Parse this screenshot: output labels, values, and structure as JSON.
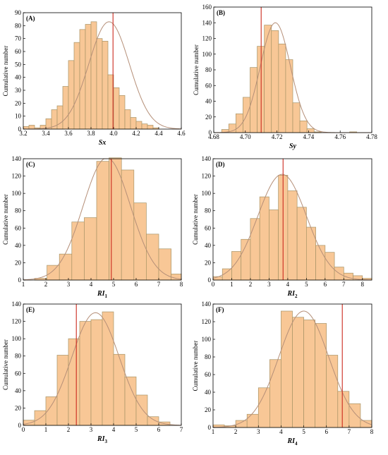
{
  "colors": {
    "bar_fill": "#f8c796",
    "bar_stroke": "#a89466",
    "curve": "#b58f78",
    "marker": "#cc2a1e",
    "frame": "#000000"
  },
  "chart_data": [
    {
      "panel": "(A)",
      "type": "bar",
      "xlabel": "Sx",
      "xlabel_sub": "",
      "ylabel": "Cumulative number",
      "xlim": [
        3.2,
        4.6
      ],
      "ylim": [
        0,
        90
      ],
      "xticks": [
        "3.2",
        "3.4",
        "3.6",
        "3.8",
        "4.0",
        "4.2",
        "4.4",
        "4.6"
      ],
      "yticks": [
        "0",
        "10",
        "20",
        "30",
        "40",
        "50",
        "60",
        "70",
        "80",
        "90"
      ],
      "bins_start": 3.2,
      "bin_width": 0.05,
      "values": [
        2,
        3,
        1,
        3,
        8,
        15,
        18,
        33,
        53,
        67,
        77,
        81,
        83,
        70,
        68,
        42,
        32,
        26,
        15,
        9,
        6,
        4,
        3,
        1
      ],
      "vline": 3.995,
      "fit": {
        "mu": 3.96,
        "sigma": 0.18,
        "peak": 83
      }
    },
    {
      "panel": "(B)",
      "type": "bar",
      "xlabel": "Sy",
      "xlabel_sub": "",
      "ylabel": "Cumulative number",
      "xlim": [
        4.68,
        4.78
      ],
      "ylim": [
        0,
        160
      ],
      "xticks": [
        "4.68",
        "4.70",
        "4.72",
        "4.74",
        "4.76",
        "4.78"
      ],
      "yticks": [
        "0",
        "20",
        "40",
        "60",
        "80",
        "100",
        "120",
        "140",
        "160"
      ],
      "bins_start": 4.685,
      "bin_width": 0.0045,
      "values": [
        4,
        11,
        24,
        45,
        83,
        110,
        137,
        130,
        113,
        93,
        38,
        15,
        5,
        1,
        0,
        0,
        0,
        0,
        1
      ],
      "vline": 4.71,
      "fit": {
        "mu": 4.719,
        "sigma": 0.0095,
        "peak": 140
      }
    },
    {
      "panel": "(C)",
      "type": "bar",
      "xlabel": "RI",
      "xlabel_sub": "1",
      "ylabel": "Cumulative number",
      "xlim": [
        1,
        8
      ],
      "ylim": [
        0,
        140
      ],
      "xticks": [
        "1",
        "2",
        "3",
        "4",
        "5",
        "6",
        "7",
        "8"
      ],
      "yticks": [
        "0",
        "20",
        "40",
        "60",
        "80",
        "100",
        "120",
        "140"
      ],
      "bins_start": 1.5,
      "bin_width": 0.55,
      "values": [
        2,
        17,
        30,
        67,
        72,
        137,
        141,
        127,
        89,
        53,
        36,
        7
      ],
      "vline": 4.9,
      "fit": {
        "mu": 4.7,
        "sigma": 1.05,
        "peak": 141
      }
    },
    {
      "panel": "(D)",
      "type": "bar",
      "xlabel": "RI",
      "xlabel_sub": "2",
      "ylabel": "Cumulative number",
      "xlim": [
        0,
        8.5
      ],
      "ylim": [
        0,
        140
      ],
      "xticks": [
        "0",
        "1",
        "2",
        "3",
        "4",
        "5",
        "6",
        "7",
        "8"
      ],
      "yticks": [
        "0",
        "20",
        "40",
        "60",
        "80",
        "100",
        "120",
        "140"
      ],
      "bins_start": 0,
      "bin_width": 0.5,
      "values": [
        4,
        13,
        33,
        47,
        71,
        96,
        81,
        121,
        103,
        84,
        61,
        40,
        32,
        15,
        8,
        5,
        2
      ],
      "vline": 3.75,
      "fit": {
        "mu": 3.7,
        "sigma": 1.3,
        "peak": 122
      }
    },
    {
      "panel": "(E)",
      "type": "bar",
      "xlabel": "RI",
      "xlabel_sub": "3",
      "ylabel": "Cumulative number",
      "xlim": [
        0,
        7
      ],
      "ylim": [
        0,
        140
      ],
      "xticks": [
        "0",
        "1",
        "2",
        "3",
        "4",
        "5",
        "6",
        "7"
      ],
      "yticks": [
        "0",
        "20",
        "40",
        "60",
        "80",
        "100",
        "120",
        "140"
      ],
      "bins_start": 0,
      "bin_width": 0.5,
      "values": [
        6,
        17,
        33,
        81,
        100,
        120,
        122,
        131,
        82,
        56,
        35,
        10,
        4
      ],
      "vline": 2.35,
      "fit": {
        "mu": 3.2,
        "sigma": 1.05,
        "peak": 130
      }
    },
    {
      "panel": "(F)",
      "type": "bar",
      "xlabel": "RI",
      "xlabel_sub": "4",
      "ylabel": "Cumulative number",
      "xlim": [
        1,
        8
      ],
      "ylim": [
        0,
        140
      ],
      "xticks": [
        "1",
        "2",
        "3",
        "4",
        "5",
        "6",
        "7",
        "8"
      ],
      "yticks": [
        "0",
        "20",
        "40",
        "60",
        "80",
        "100",
        "120",
        "140"
      ],
      "bins_start": 1,
      "bin_width": 0.5,
      "values": [
        3,
        2,
        8,
        15,
        45,
        77,
        132,
        125,
        122,
        118,
        82,
        41,
        27,
        8
      ],
      "vline": 6.7,
      "fit": {
        "mu": 5.0,
        "sigma": 1.1,
        "peak": 132
      }
    }
  ]
}
